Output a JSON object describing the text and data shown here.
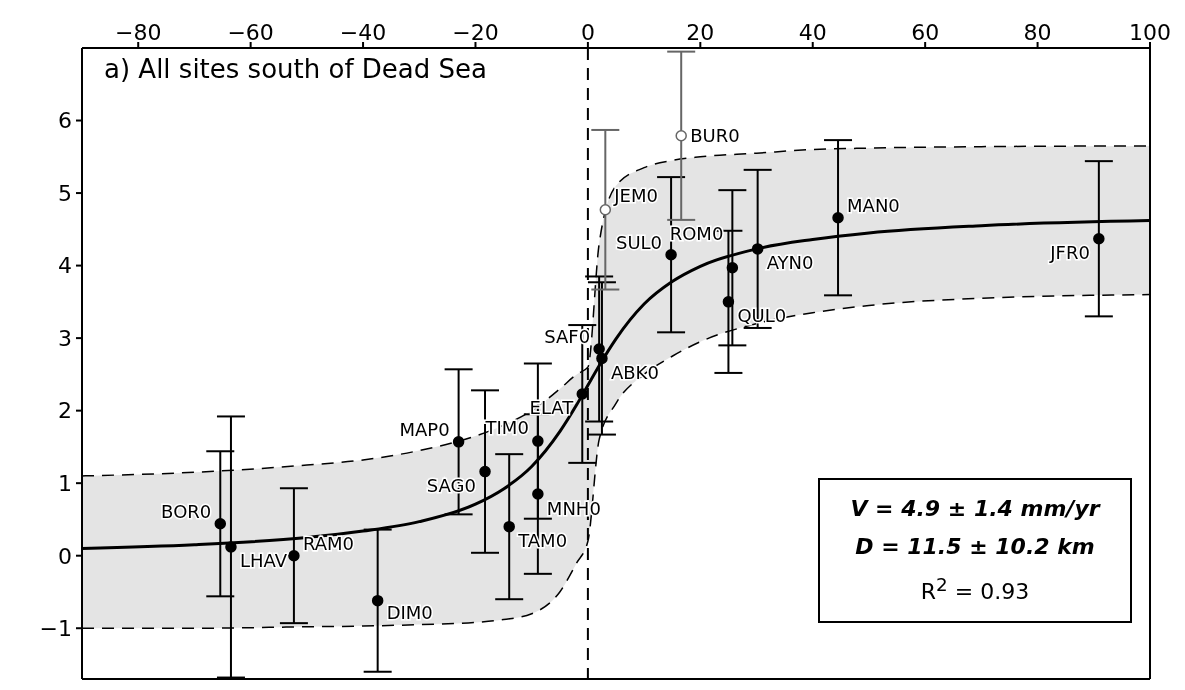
{
  "chart_data": {
    "type": "scatter",
    "title": "a) All sites south of Dead Sea",
    "xlim": [
      -90,
      100
    ],
    "xticks": [
      -80,
      -60,
      -40,
      -20,
      0,
      20,
      40,
      60,
      80,
      100
    ],
    "ylim": [
      -1.7,
      7
    ],
    "yticks": [
      -1,
      0,
      1,
      2,
      3,
      4,
      5,
      6
    ],
    "grid": false,
    "legend": false,
    "series": [
      {
        "type": "line",
        "color": "#000000",
        "x": [
          -90,
          -70,
          -50,
          -40,
          -30,
          -20,
          -15,
          -10,
          -5,
          -2,
          0,
          2,
          5,
          10,
          15,
          20,
          30,
          40,
          50,
          70,
          100
        ],
        "values": [
          0.1,
          0.15,
          0.25,
          0.34,
          0.47,
          0.71,
          0.92,
          1.23,
          1.71,
          2.08,
          2.35,
          2.62,
          2.99,
          3.47,
          3.78,
          3.99,
          4.23,
          4.36,
          4.45,
          4.55,
          4.62
        ],
        "lower": [
          -1.0,
          -1.0,
          -0.98,
          -0.97,
          -0.95,
          -0.92,
          -0.88,
          -0.8,
          -0.5,
          -0.1,
          0.2,
          1.6,
          2.1,
          2.5,
          2.75,
          2.95,
          3.2,
          3.35,
          3.45,
          3.55,
          3.6
        ],
        "upper": [
          1.1,
          1.15,
          1.25,
          1.32,
          1.45,
          1.65,
          1.8,
          2.0,
          2.3,
          2.5,
          2.6,
          4.3,
          5.1,
          5.35,
          5.45,
          5.5,
          5.55,
          5.6,
          5.62,
          5.64,
          5.65
        ]
      },
      {
        "type": "line",
        "line_style": "dashed",
        "color": "#000000",
        "x": [
          -90,
          -70,
          -50,
          -40,
          -30,
          -20,
          -15,
          -10,
          -5,
          -2,
          0,
          2,
          5,
          10,
          15,
          20,
          30,
          40,
          50,
          70,
          100
        ],
        "values": [
          -1.0,
          -1.0,
          -0.98,
          -0.97,
          -0.95,
          -0.92,
          -0.88,
          -0.8,
          -0.5,
          -0.1,
          0.2,
          1.6,
          2.1,
          2.5,
          2.75,
          2.95,
          3.2,
          3.35,
          3.45,
          3.55,
          3.6
        ]
      },
      {
        "type": "line",
        "line_style": "dashed",
        "color": "#000000",
        "x": [
          -90,
          -70,
          -50,
          -40,
          -30,
          -20,
          -15,
          -10,
          -5,
          -2,
          0,
          2,
          5,
          10,
          15,
          20,
          30,
          40,
          50,
          70,
          100
        ],
        "values": [
          1.1,
          1.15,
          1.25,
          1.32,
          1.45,
          1.65,
          1.8,
          2.0,
          2.3,
          2.5,
          2.6,
          4.3,
          5.1,
          5.35,
          5.45,
          5.5,
          5.55,
          5.6,
          5.62,
          5.64,
          5.65
        ]
      },
      {
        "marker": "circle",
        "color": "#000000",
        "x": [
          -65.4,
          -63.5,
          -52.3,
          -37.4,
          -23,
          -18.3,
          -14,
          -8.9,
          -8.9,
          -1,
          2,
          2.5,
          14.8,
          25.7,
          25,
          30.2,
          44.5,
          90.9
        ],
        "values": [
          0.44,
          0.12,
          0,
          -0.62,
          1.57,
          1.16,
          0.4,
          1.58,
          0.85,
          2.23,
          2.85,
          2.72,
          4.15,
          3.97,
          3.5,
          4.23,
          4.66,
          4.37
        ],
        "errors": [
          1.0,
          1.8,
          0.93,
          0.98,
          1.0,
          1.12,
          1.0,
          1.07,
          1.1,
          0.95,
          1.0,
          1.05,
          1.07,
          1.07,
          0.98,
          1.09,
          1.07,
          1.07
        ]
      },
      {
        "marker": "circle",
        "color": "#666666",
        "x": [
          3.1,
          16.6
        ],
        "values": [
          4.77,
          5.79
        ],
        "errors": [
          1.1,
          1.16
        ]
      }
    ],
    "ref_lines": [
      {
        "axis": "x",
        "value": 0,
        "line_style": "dashed",
        "color": "#000000"
      }
    ],
    "annotations": [
      "V = 4.9 ± 1.4 mm/yr",
      "D = 11.5 ± 10.2 km",
      "R$^{2}$ = 0.93",
      {
        "text": "BOR0",
        "x": -65.4,
        "y": 0.44
      },
      {
        "text": "LHAV",
        "x": -63.5,
        "y": 0.12
      },
      {
        "text": "RAM0",
        "x": -52.3,
        "y": 0
      },
      {
        "text": "DIM0",
        "x": -37.4,
        "y": -0.62
      },
      {
        "text": "MAP0",
        "x": -23,
        "y": 1.57
      },
      {
        "text": "SAG0",
        "x": -18.3,
        "y": 1.16
      },
      {
        "text": "TAM0",
        "x": -14,
        "y": 0.4
      },
      {
        "text": "TIM0",
        "x": -8.9,
        "y": 1.58
      },
      {
        "text": "MNH0",
        "x": -8.9,
        "y": 0.85
      },
      {
        "text": "ELAT",
        "x": -1,
        "y": 2.23
      },
      {
        "text": "SAF0",
        "x": 2,
        "y": 2.85
      },
      {
        "text": "ABK0",
        "x": 2.5,
        "y": 2.72
      },
      {
        "text": "JEM0",
        "x": 3.1,
        "y": 4.77
      },
      {
        "text": "SUL0",
        "x": 14.8,
        "y": 4.15
      },
      {
        "text": "BUR0",
        "x": 16.6,
        "y": 5.79
      },
      {
        "text": "ROM0",
        "x": 25.7,
        "y": 3.97
      },
      {
        "text": "QUL0",
        "x": 25,
        "y": 3.5
      },
      {
        "text": "AYN0",
        "x": 30.2,
        "y": 4.23
      },
      {
        "text": "MAN0",
        "x": 44.5,
        "y": 4.66
      },
      {
        "text": "JFR0",
        "x": 90.9,
        "y": 4.37
      }
    ]
  }
}
